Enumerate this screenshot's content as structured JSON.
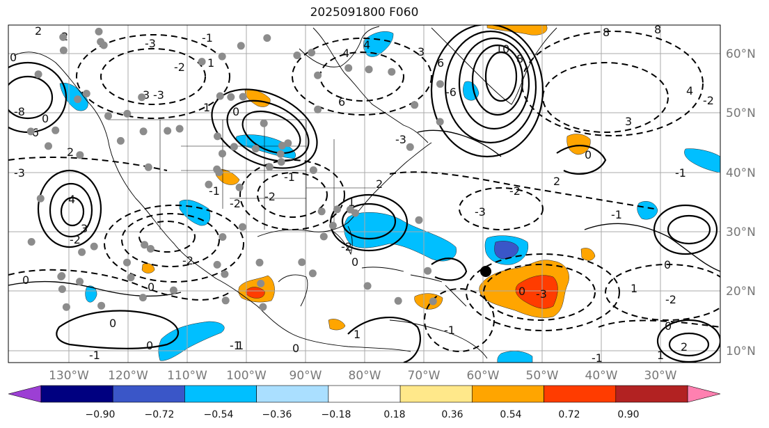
{
  "title": "2025091800 F060",
  "lon_labels": [
    "130°W",
    "120°W",
    "110°W",
    "100°W",
    "90°W",
    "80°W",
    "70°W",
    "60°W",
    "50°W",
    "40°W",
    "30°W"
  ],
  "lat_labels": [
    "60°N",
    "50°N",
    "40°N",
    "30°N",
    "20°N",
    "10°N"
  ],
  "colorbar": {
    "labels": [
      "−0.90",
      "−0.72",
      "−0.54",
      "−0.36",
      "−0.18",
      "0.18",
      "0.36",
      "0.54",
      "0.72",
      "0.90"
    ],
    "colors": [
      "#9c3fd4",
      "#000080",
      "#3a56c8",
      "#00bfff",
      "#aadfff",
      "#ffffff",
      "#ffe88a",
      "#ffa500",
      "#ff3c00",
      "#b22222",
      "#ff80b0"
    ]
  },
  "contour_labels": [
    {
      "t": "2"
    },
    {
      "t": "2"
    },
    {
      "t": "4"
    },
    {
      "t": "6"
    },
    {
      "t": "8"
    },
    {
      "t": "10"
    },
    {
      "t": "8"
    },
    {
      "t": "6"
    },
    {
      "t": "4"
    },
    {
      "t": "3"
    },
    {
      "t": "2"
    },
    {
      "t": "0"
    },
    {
      "t": "-1"
    },
    {
      "t": "1"
    },
    {
      "t": "0"
    },
    {
      "t": "-3"
    },
    {
      "t": "-2"
    },
    {
      "t": "-3"
    },
    {
      "t": "0"
    },
    {
      "t": "-1"
    },
    {
      "t": "0"
    },
    {
      "t": "1"
    },
    {
      "t": "0"
    },
    {
      "t": "-1"
    },
    {
      "t": "2"
    },
    {
      "t": "3"
    },
    {
      "t": "2"
    },
    {
      "t": "0"
    },
    {
      "t": "-1"
    },
    {
      "t": "-2"
    },
    {
      "t": "0"
    },
    {
      "t": "-1"
    },
    {
      "t": "1"
    },
    {
      "t": "0"
    },
    {
      "t": "1"
    },
    {
      "t": "2"
    },
    {
      "t": "-3"
    },
    {
      "t": "-2"
    },
    {
      "t": "4"
    },
    {
      "t": "3"
    },
    {
      "t": "-2"
    },
    {
      "t": "0"
    },
    {
      "t": "1"
    },
    {
      "t": "0"
    },
    {
      "t": "-2"
    },
    {
      "t": "-1"
    },
    {
      "t": "-3"
    },
    {
      "t": "-2"
    },
    {
      "t": "1"
    },
    {
      "t": "0"
    },
    {
      "t": "4"
    },
    {
      "t": "-3"
    },
    {
      "t": "-6"
    },
    {
      "t": "1"
    },
    {
      "t": "-2"
    },
    {
      "t": "0"
    },
    {
      "t": "-1"
    },
    {
      "t": "-8"
    },
    {
      "t": "-6"
    },
    {
      "t": "0"
    },
    {
      "t": "-2"
    },
    {
      "t": "-3"
    },
    {
      "t": "-1"
    },
    {
      "t": "3"
    },
    {
      "t": "-1"
    },
    {
      "t": "-2"
    },
    {
      "t": "8"
    }
  ]
}
